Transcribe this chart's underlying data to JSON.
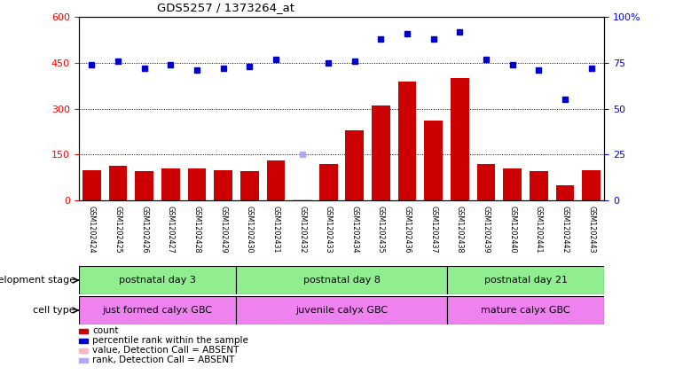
{
  "title": "GDS5257 / 1373264_at",
  "samples": [
    "GSM1202424",
    "GSM1202425",
    "GSM1202426",
    "GSM1202427",
    "GSM1202428",
    "GSM1202429",
    "GSM1202430",
    "GSM1202431",
    "GSM1202432",
    "GSM1202433",
    "GSM1202434",
    "GSM1202435",
    "GSM1202436",
    "GSM1202437",
    "GSM1202438",
    "GSM1202439",
    "GSM1202440",
    "GSM1202441",
    "GSM1202442",
    "GSM1202443"
  ],
  "counts": [
    100,
    115,
    95,
    105,
    105,
    98,
    95,
    130,
    5,
    120,
    230,
    310,
    390,
    260,
    400,
    120,
    105,
    95,
    50,
    100
  ],
  "counts_absent": [
    false,
    false,
    false,
    false,
    false,
    false,
    false,
    false,
    true,
    false,
    false,
    false,
    false,
    false,
    false,
    false,
    false,
    false,
    false,
    false
  ],
  "ranks": [
    74,
    76,
    72,
    74,
    71,
    72,
    73,
    77,
    25,
    75,
    76,
    88,
    91,
    88,
    92,
    77,
    74,
    71,
    55,
    72
  ],
  "ranks_absent": [
    false,
    false,
    false,
    false,
    false,
    false,
    false,
    false,
    true,
    false,
    false,
    false,
    false,
    false,
    false,
    false,
    false,
    false,
    false,
    false
  ],
  "left_ylim": [
    0,
    600
  ],
  "right_ylim": [
    0,
    100
  ],
  "left_yticks": [
    0,
    150,
    300,
    450,
    600
  ],
  "right_yticks": [
    0,
    25,
    50,
    75,
    100
  ],
  "right_yticklabels": [
    "0",
    "25",
    "50",
    "75",
    "100%"
  ],
  "group_boundaries": [
    0,
    6,
    14,
    20
  ],
  "group_labels": [
    "postnatal day 3",
    "postnatal day 8",
    "postnatal day 21"
  ],
  "group_colors": [
    "#aaddaa",
    "#90EE90",
    "#44cc44"
  ],
  "cell_labels": [
    "just formed calyx GBC",
    "juvenile calyx GBC",
    "mature calyx GBC"
  ],
  "cell_color": "#EE82EE",
  "dev_bg_colors": [
    "#b8f0b8",
    "#90EE90",
    "#44cc44"
  ],
  "dev_stage_label": "development stage",
  "cell_type_label": "cell type",
  "bar_color": "#CC0000",
  "bar_absent_color": "#FFB6C1",
  "rank_color": "#0000CC",
  "rank_absent_color": "#AAAAFF",
  "legend_items": [
    {
      "label": "count",
      "color": "#CC0000"
    },
    {
      "label": "percentile rank within the sample",
      "color": "#0000CC"
    },
    {
      "label": "value, Detection Call = ABSENT",
      "color": "#FFB6C1"
    },
    {
      "label": "rank, Detection Call = ABSENT",
      "color": "#AAAAFF"
    }
  ],
  "xtick_bg": "#C8C8C8",
  "xtick_border": "#888888"
}
